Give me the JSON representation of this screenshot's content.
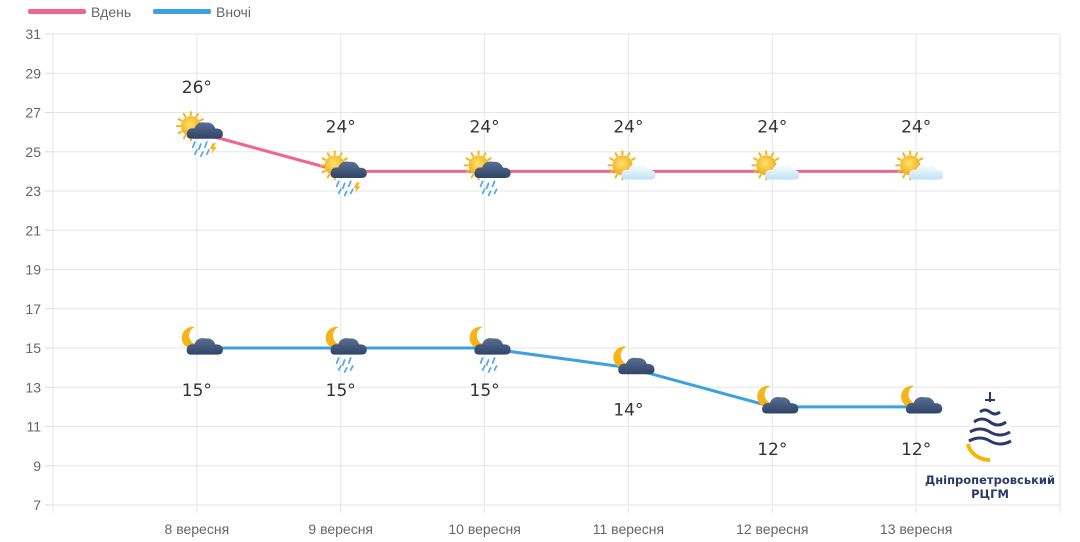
{
  "chart_data": {
    "type": "line",
    "categories": [
      "8 вересня",
      "9 вересня",
      "10 вересня",
      "11 вересня",
      "12 вересня",
      "13 вересня"
    ],
    "ylim": [
      7,
      31
    ],
    "yticks": [
      7,
      9,
      11,
      13,
      15,
      17,
      19,
      21,
      23,
      25,
      27,
      29,
      31
    ],
    "grid": true,
    "legend_position": "top-left",
    "series": [
      {
        "name": "Вдень",
        "color": "#f0658b",
        "values": [
          26,
          24,
          24,
          24,
          24,
          24
        ],
        "labels": [
          "26°",
          "24°",
          "24°",
          "24°",
          "24°",
          "24°"
        ],
        "icons": [
          "sun-cloud-rain-thunder-icon",
          "sun-cloud-rain-thunder-icon",
          "sun-cloud-rain-icon",
          "sun-cloud-icon",
          "sun-cloud-icon",
          "sun-cloud-icon"
        ]
      },
      {
        "name": "Вночі",
        "color": "#3ba1e3",
        "values": [
          15,
          15,
          15,
          14,
          12,
          12
        ],
        "labels": [
          "15°",
          "15°",
          "15°",
          "14°",
          "12°",
          "12°"
        ],
        "icons": [
          "moon-cloud-icon",
          "moon-cloud-rain-icon",
          "moon-cloud-rain-icon",
          "moon-cloud-icon",
          "moon-cloud-icon",
          "moon-cloud-icon"
        ]
      }
    ]
  },
  "logo": {
    "line1": "Дніпропетровський",
    "line2": "РЦГМ"
  }
}
